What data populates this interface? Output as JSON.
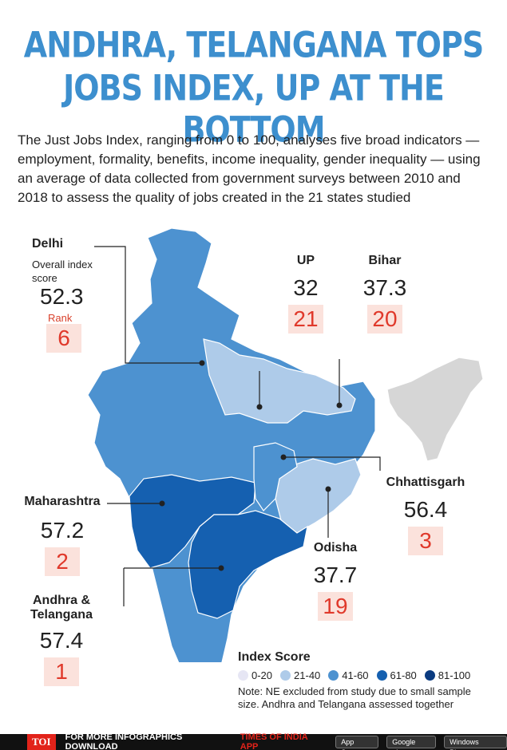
{
  "title": {
    "line1": "ANDHRA, TELANGANA TOPS",
    "line2": "JOBS INDEX, UP AT THE BOTTOM"
  },
  "intro": "The Just Jobs Index, ranging from 0 to 100, analyses five broad indicators — employment, formality, benefits, income inequality, gender inequality — using an average of data collected from government surveys between 2010 and 2018 to assess the quality of jobs created in the 21 states studied",
  "callouts": {
    "delhi": {
      "name": "Delhi",
      "score_caption": "Overall index score",
      "score": "52.3",
      "rank_caption": "Rank",
      "rank": "6"
    },
    "up": {
      "name": "UP",
      "score": "32",
      "rank": "21"
    },
    "bihar": {
      "name": "Bihar",
      "score": "37.3",
      "rank": "20"
    },
    "chhattisgarh": {
      "name": "Chhattisgarh",
      "score": "56.4",
      "rank": "3"
    },
    "maharashtra": {
      "name": "Maharashtra",
      "score": "57.2",
      "rank": "2"
    },
    "odisha": {
      "name": "Odisha",
      "score": "37.7",
      "rank": "19"
    },
    "andhra": {
      "name": "Andhra & Telangana",
      "score": "57.4",
      "rank": "1"
    }
  },
  "legend": {
    "title": "Index Score",
    "items": [
      {
        "label": "0-20",
        "color": "#e6e6f4"
      },
      {
        "label": "21-40",
        "color": "#aecbe9"
      },
      {
        "label": "41-60",
        "color": "#4d92d0"
      },
      {
        "label": "61-80",
        "color": "#1560b0"
      },
      {
        "label": "81-100",
        "color": "#0b3b80"
      }
    ],
    "note": "Note: NE excluded from study due to small sample size. Andhra and Telangana assessed together"
  },
  "map_colors": {
    "mid": "#4d92d0",
    "light": "#aecbe9",
    "dark": "#1560b0",
    "excluded": "#d6d6d6",
    "border": "#ffffff"
  },
  "footer": {
    "badge": "TOI",
    "text": "FOR MORE  INFOGRAPHICS DOWNLOAD",
    "app": "TIMES OF INDIA APP",
    "stores": [
      "App Store",
      "Google play",
      "Windows Phone"
    ]
  }
}
